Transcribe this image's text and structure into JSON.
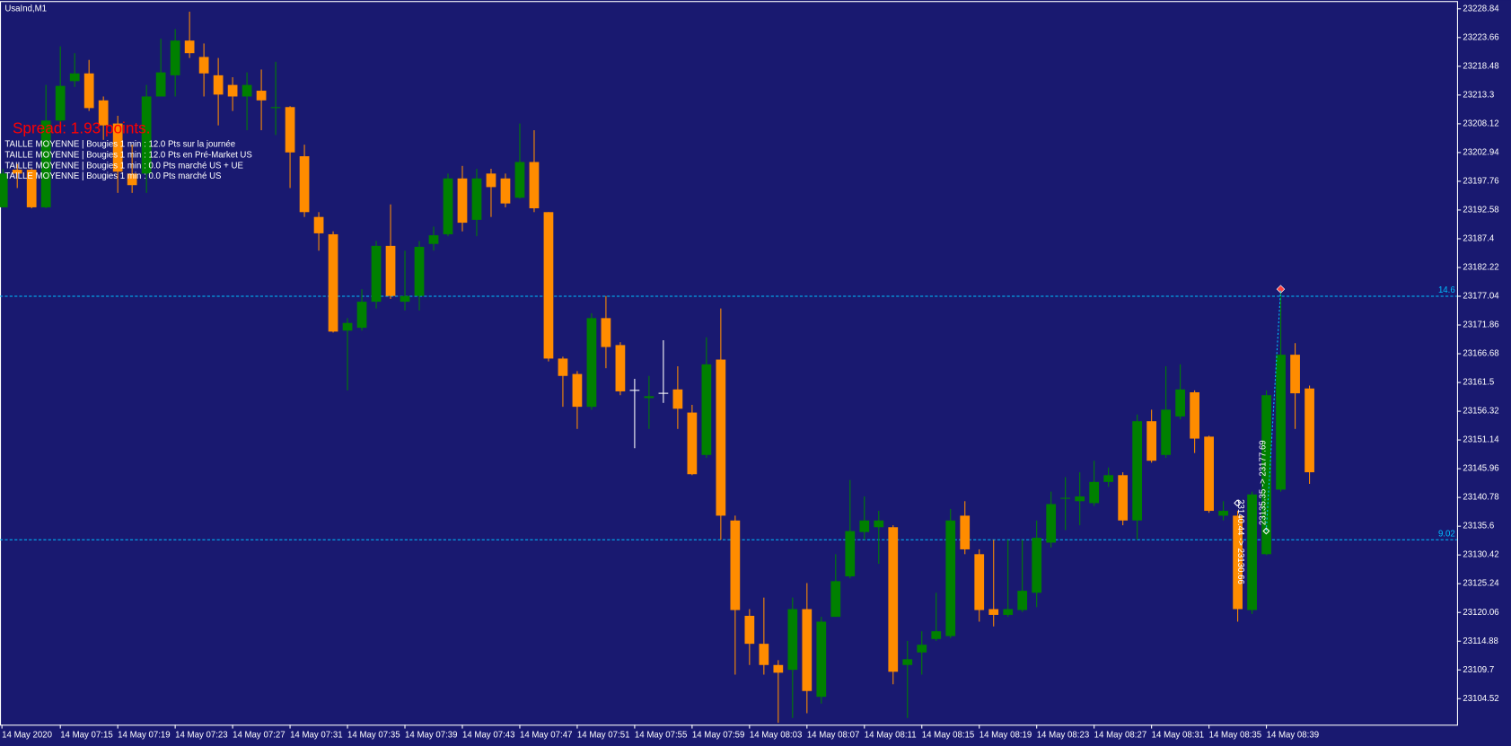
{
  "chart_data": {
    "type": "candlestick",
    "title": "UsaInd,M1",
    "spread_text": "Spread: 1.93 points.",
    "info_lines": [
      "TAILLE MOYENNE | Bougies 1 min : 12.0 Pts sur la journée",
      "TAILLE MOYENNE | Bougies 1 min : 12.0 Pts en Pré-Market US",
      "TAILLE MOYENNE | Bougies 1 min : 0.0 Pts marché US + UE",
      "TAILLE MOYENNE | Bougies 1 min : 0.0 Pts marché US"
    ],
    "categories": [
      "14 May 2020",
      null,
      null,
      null,
      "14 May 07:15",
      null,
      null,
      null,
      "14 May 07:19",
      null,
      null,
      null,
      "14 May 07:23",
      null,
      null,
      null,
      "14 May 07:27",
      null,
      null,
      null,
      "14 May 07:31",
      null,
      null,
      null,
      "14 May 07:35",
      null,
      null,
      null,
      "14 May 07:39",
      null,
      null,
      null,
      "14 May 07:43",
      null,
      null,
      null,
      "14 May 07:47",
      null,
      null,
      null,
      "14 May 07:51",
      null,
      null,
      null,
      "14 May 07:55",
      null,
      null,
      null,
      "14 May 07:59",
      null,
      null,
      null,
      "14 May 08:03",
      null,
      null,
      null,
      "14 May 08:07",
      null,
      null,
      null,
      "14 May 08:11",
      null,
      null,
      null,
      "14 May 08:15",
      null,
      null,
      null,
      "14 May 08:19",
      null,
      null,
      null,
      "14 May 08:23",
      null,
      null,
      null,
      "14 May 08:27",
      null,
      null,
      null,
      "14 May 08:31",
      null,
      null,
      null,
      "14 May 08:35",
      null,
      null,
      null,
      "14 May 08:39",
      null,
      null,
      null
    ],
    "open": [
      23193.07,
      23199.84,
      23199.84,
      23193.07,
      23208.7,
      23215.81,
      23217.2,
      23212.34,
      23208.17,
      23199.15,
      23199.15,
      23213.04,
      23216.86,
      23223.11,
      23220.16,
      23216.86,
      23215.12,
      23213.04,
      23214.08,
      23210.95,
      23211.13,
      23202.27,
      23191.33,
      23188.21,
      23170.84,
      23171.36,
      23176.05,
      23186.12,
      23176.05,
      23177.09,
      23186.47,
      23188.21,
      23198.27,
      23190.81,
      23199.15,
      23198.27,
      23194.8,
      23201.23,
      23192.2,
      23165.81,
      23163.03,
      23157.12,
      23173.1,
      23168.24,
      23160.08,
      23158.69,
      23159.55,
      23160.25,
      23156.08,
      23148.44,
      23165.63,
      23136.63,
      23119.45,
      23114.41,
      23110.59,
      23109.72,
      23120.66,
      23104.86,
      23119.27,
      23126.56,
      23134.55,
      23135.42,
      23135.42,
      23110.59,
      23112.85,
      23115.28,
      23115.8,
      23137.5,
      23130.56,
      23120.66,
      23119.62,
      23120.49,
      23123.61,
      23132.64,
      23140.63,
      23140.11,
      23139.76,
      23143.58,
      23144.8,
      23136.63,
      23154.52,
      23148.44,
      23155.38,
      23159.73,
      23151.74,
      23137.5,
      23137.5,
      23120.49,
      23130.56,
      23142.19,
      23166.5,
      23160.42
    ],
    "high": [
      23200.01,
      23200.88,
      23200.01,
      23215.12,
      23222.07,
      23220.85,
      23219.63,
      23213.04,
      23209.56,
      23204.35,
      23215.12,
      23223.45,
      23225.19,
      23228.32,
      23222.59,
      23219.98,
      23216.51,
      23217.38,
      23217.9,
      23219.29,
      23211.3,
      23204.35,
      23192.2,
      23188.73,
      23173.1,
      23178.31,
      23186.99,
      23193.59,
      23185.25,
      23186.99,
      23189.6,
      23199.15,
      23200.53,
      23200.01,
      23200.01,
      23199.15,
      23208.17,
      23206.96,
      23192.2,
      23166.15,
      23163.55,
      23173.97,
      23177.09,
      23168.76,
      23162.16,
      23162.68,
      23169.11,
      23164.42,
      23157.47,
      23169.63,
      23174.84,
      23137.5,
      23120.66,
      23122.74,
      23111.46,
      23122.74,
      23125.35,
      23119.27,
      23130.56,
      23143.93,
      23140.97,
      23138.37,
      23135.77,
      23114.93,
      23116.67,
      23123.61,
      23138.72,
      23140.11,
      23131.43,
      23133.16,
      23133.16,
      23133.16,
      23136.63,
      23141.84,
      23144.45,
      23145.32,
      23147.4,
      23146.18,
      23145.32,
      23155.73,
      23156.6,
      23164.42,
      23164.77,
      23160.08,
      23151.91,
      23140.11,
      23138.37,
      23141.84,
      23160.08,
      23178.31,
      23168.59,
      23160.94
    ],
    "low": [
      23193.07,
      23196.54,
      23192.89,
      23192.89,
      23207.83,
      23214.77,
      23210.43,
      23205.22,
      23195.67,
      23195.67,
      23195.67,
      23213.04,
      23213.04,
      23219.98,
      23213.04,
      23207.83,
      23210.43,
      23206.96,
      23206.96,
      23206.09,
      23196.54,
      23191.33,
      23185.25,
      23170.5,
      23160.08,
      23170.84,
      23174.84,
      23176.57,
      23174.49,
      23174.49,
      23185.25,
      23187.86,
      23188.73,
      23187.86,
      23191.33,
      23193.07,
      23194.63,
      23192.2,
      23165.29,
      23157.12,
      23153.13,
      23156.6,
      23164.07,
      23159.21,
      23149.66,
      23153.13,
      23157.82,
      23153.13,
      23144.8,
      23147.92,
      23133.16,
      23108.85,
      23110.59,
      23108.85,
      23100.17,
      23101.04,
      23101.9,
      23103.64,
      23119.27,
      23126.22,
      23133.16,
      23128.82,
      23107.12,
      23101.04,
      23108.85,
      23114.93,
      23115.45,
      23130.56,
      23118.4,
      23117.54,
      23119.27,
      23120.14,
      23121.01,
      23131.77,
      23134.9,
      23135.77,
      23139.24,
      23142.71,
      23135.77,
      23133.16,
      23147.05,
      23147.92,
      23154.87,
      23148.79,
      23138.02,
      23136.63,
      23118.4,
      23119.79,
      23130.38,
      23141.84,
      23153.13,
      23143.23
    ],
    "close": [
      23199.15,
      23199.15,
      23193.07,
      23208.7,
      23214.95,
      23217.2,
      23210.95,
      23207.83,
      23199.49,
      23197.06,
      23213.04,
      23217.38,
      23223.11,
      23220.85,
      23217.2,
      23213.38,
      23213.04,
      23215.12,
      23212.34,
      23211.13,
      23202.96,
      23192.2,
      23188.38,
      23170.67,
      23172.23,
      23176.05,
      23186.12,
      23177.09,
      23177.09,
      23185.95,
      23188.03,
      23198.27,
      23190.29,
      23198.27,
      23196.71,
      23193.76,
      23201.23,
      23192.89,
      23165.81,
      23162.68,
      23157.12,
      23173.1,
      23167.89,
      23159.9,
      23160.08,
      23159.03,
      23159.55,
      23156.77,
      23144.97,
      23164.77,
      23137.5,
      23120.49,
      23114.41,
      23110.59,
      23109.2,
      23120.66,
      23105.9,
      23118.4,
      23125.7,
      23134.72,
      23136.63,
      23136.63,
      23109.37,
      23111.63,
      23114.24,
      23116.67,
      23136.63,
      23131.43,
      23120.49,
      23119.62,
      23120.66,
      23123.96,
      23133.51,
      23139.59,
      23140.8,
      23140.97,
      23143.58,
      23144.8,
      23136.63,
      23154.52,
      23147.4,
      23156.6,
      23160.25,
      23151.39,
      23138.37,
      23138.37,
      23120.66,
      23141.32,
      23159.21,
      23166.5,
      23159.55,
      23145.32
    ],
    "up_color": "#008000",
    "down_color": "#ff8c00",
    "doji_color": "#ffffff",
    "background": "#191970",
    "ylim": [
      23099.83,
      23230.06
    ],
    "yticks": [
      23228.84,
      23223.66,
      23218.48,
      23213.3,
      23208.12,
      23202.94,
      23197.76,
      23192.58,
      23187.4,
      23182.22,
      23177.04,
      23171.86,
      23166.68,
      23161.5,
      23156.32,
      23151.14,
      23145.96,
      23140.78,
      23135.6,
      23130.42,
      23125.24,
      23120.06,
      23114.88,
      23109.7,
      23104.52
    ],
    "levels": [
      {
        "value": 23177.04,
        "label": "14.6",
        "color": "#00bfff"
      },
      {
        "value": 23133.16,
        "label": "9.02",
        "color": "#00bfff"
      }
    ],
    "annotations": [
      "23135.35 -> 23177.69",
      "23140.44 -> 23130.66"
    ],
    "grid": false
  }
}
